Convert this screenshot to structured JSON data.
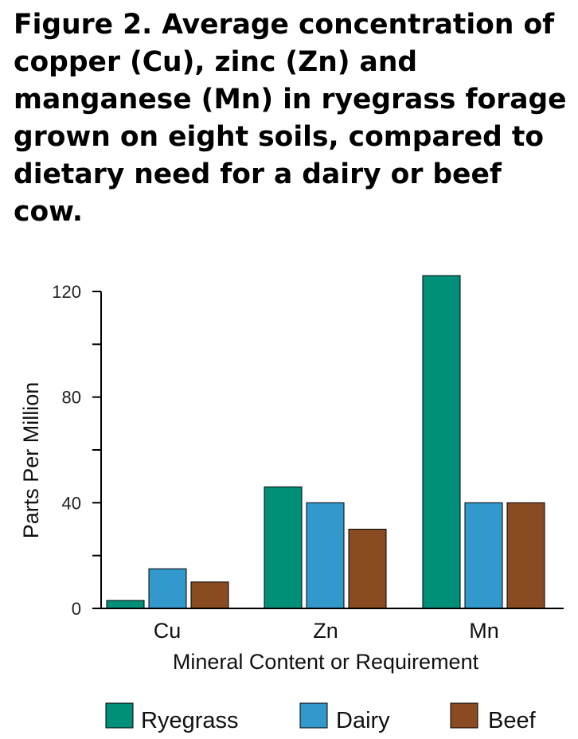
{
  "chart_data": {
    "type": "bar",
    "title": "Figure 2. Average concentration of copper (Cu), zinc (Zn) and manganese (Mn) in ryegrass forage grown on eight soils, compared to dietary need for a dairy or beef cow.",
    "categories": [
      "Cu",
      "Zn",
      "Mn"
    ],
    "series": [
      {
        "name": "Ryegrass",
        "color": "#00907a",
        "values": [
          3,
          46,
          126
        ]
      },
      {
        "name": "Dairy",
        "color": "#3399cc",
        "values": [
          15,
          40,
          40
        ]
      },
      {
        "name": "Beef",
        "color": "#8b4b22",
        "values": [
          10,
          30,
          40
        ]
      }
    ],
    "xlabel": "Mineral Content or Requirement",
    "ylabel": "Parts Per Million",
    "ylim": [
      0,
      120
    ],
    "yticks_labeled": [
      "0",
      "40",
      "80",
      "120"
    ],
    "yticks_minor_every": 20,
    "grid": false,
    "legend_position": "bottom"
  }
}
